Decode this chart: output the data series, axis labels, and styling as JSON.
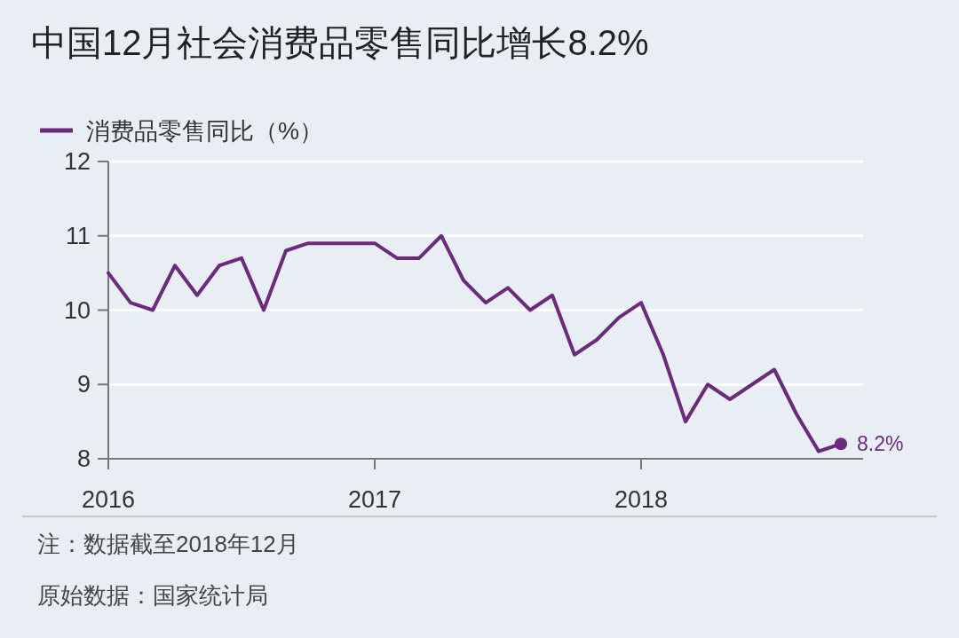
{
  "chart_data": {
    "type": "line",
    "title": "中国12月社会消费品零售同比增长8.2%",
    "x": [
      "2016-01",
      "2016-02",
      "2016-03",
      "2016-04",
      "2016-05",
      "2016-06",
      "2016-07",
      "2016-08",
      "2016-09",
      "2016-10",
      "2016-11",
      "2016-12",
      "2017-01",
      "2017-02",
      "2017-03",
      "2017-04",
      "2017-05",
      "2017-06",
      "2017-07",
      "2017-08",
      "2017-09",
      "2017-10",
      "2017-11",
      "2017-12",
      "2018-01",
      "2018-02",
      "2018-03",
      "2018-04",
      "2018-05",
      "2018-06",
      "2018-07",
      "2018-08",
      "2018-09",
      "2018-10"
    ],
    "series": [
      {
        "name": "消费品零售同比（%）",
        "color": "#6c2a7c",
        "values": [
          10.5,
          10.1,
          10.0,
          10.6,
          10.2,
          10.6,
          10.7,
          10.0,
          10.8,
          10.9,
          10.9,
          10.9,
          10.9,
          10.7,
          10.7,
          11.0,
          10.4,
          10.1,
          10.3,
          10.0,
          10.2,
          9.4,
          9.6,
          9.9,
          10.1,
          9.4,
          8.5,
          9.0,
          8.8,
          9.0,
          9.2,
          8.6,
          8.1,
          8.2
        ]
      }
    ],
    "xlim": [
      "2016-01",
      "2018-11"
    ],
    "xticks": [
      "2016",
      "2017",
      "2018"
    ],
    "ylim": [
      8,
      12
    ],
    "yticks": [
      8,
      9,
      10,
      11,
      12
    ],
    "grid": "y",
    "legend": "top left",
    "line_style": "solid",
    "annotations": [
      {
        "text": "8.2%",
        "x": "2018-10",
        "y": 8.2
      },
      "注：数据截至2018年12月",
      "原始数据：国家统计局"
    ]
  }
}
